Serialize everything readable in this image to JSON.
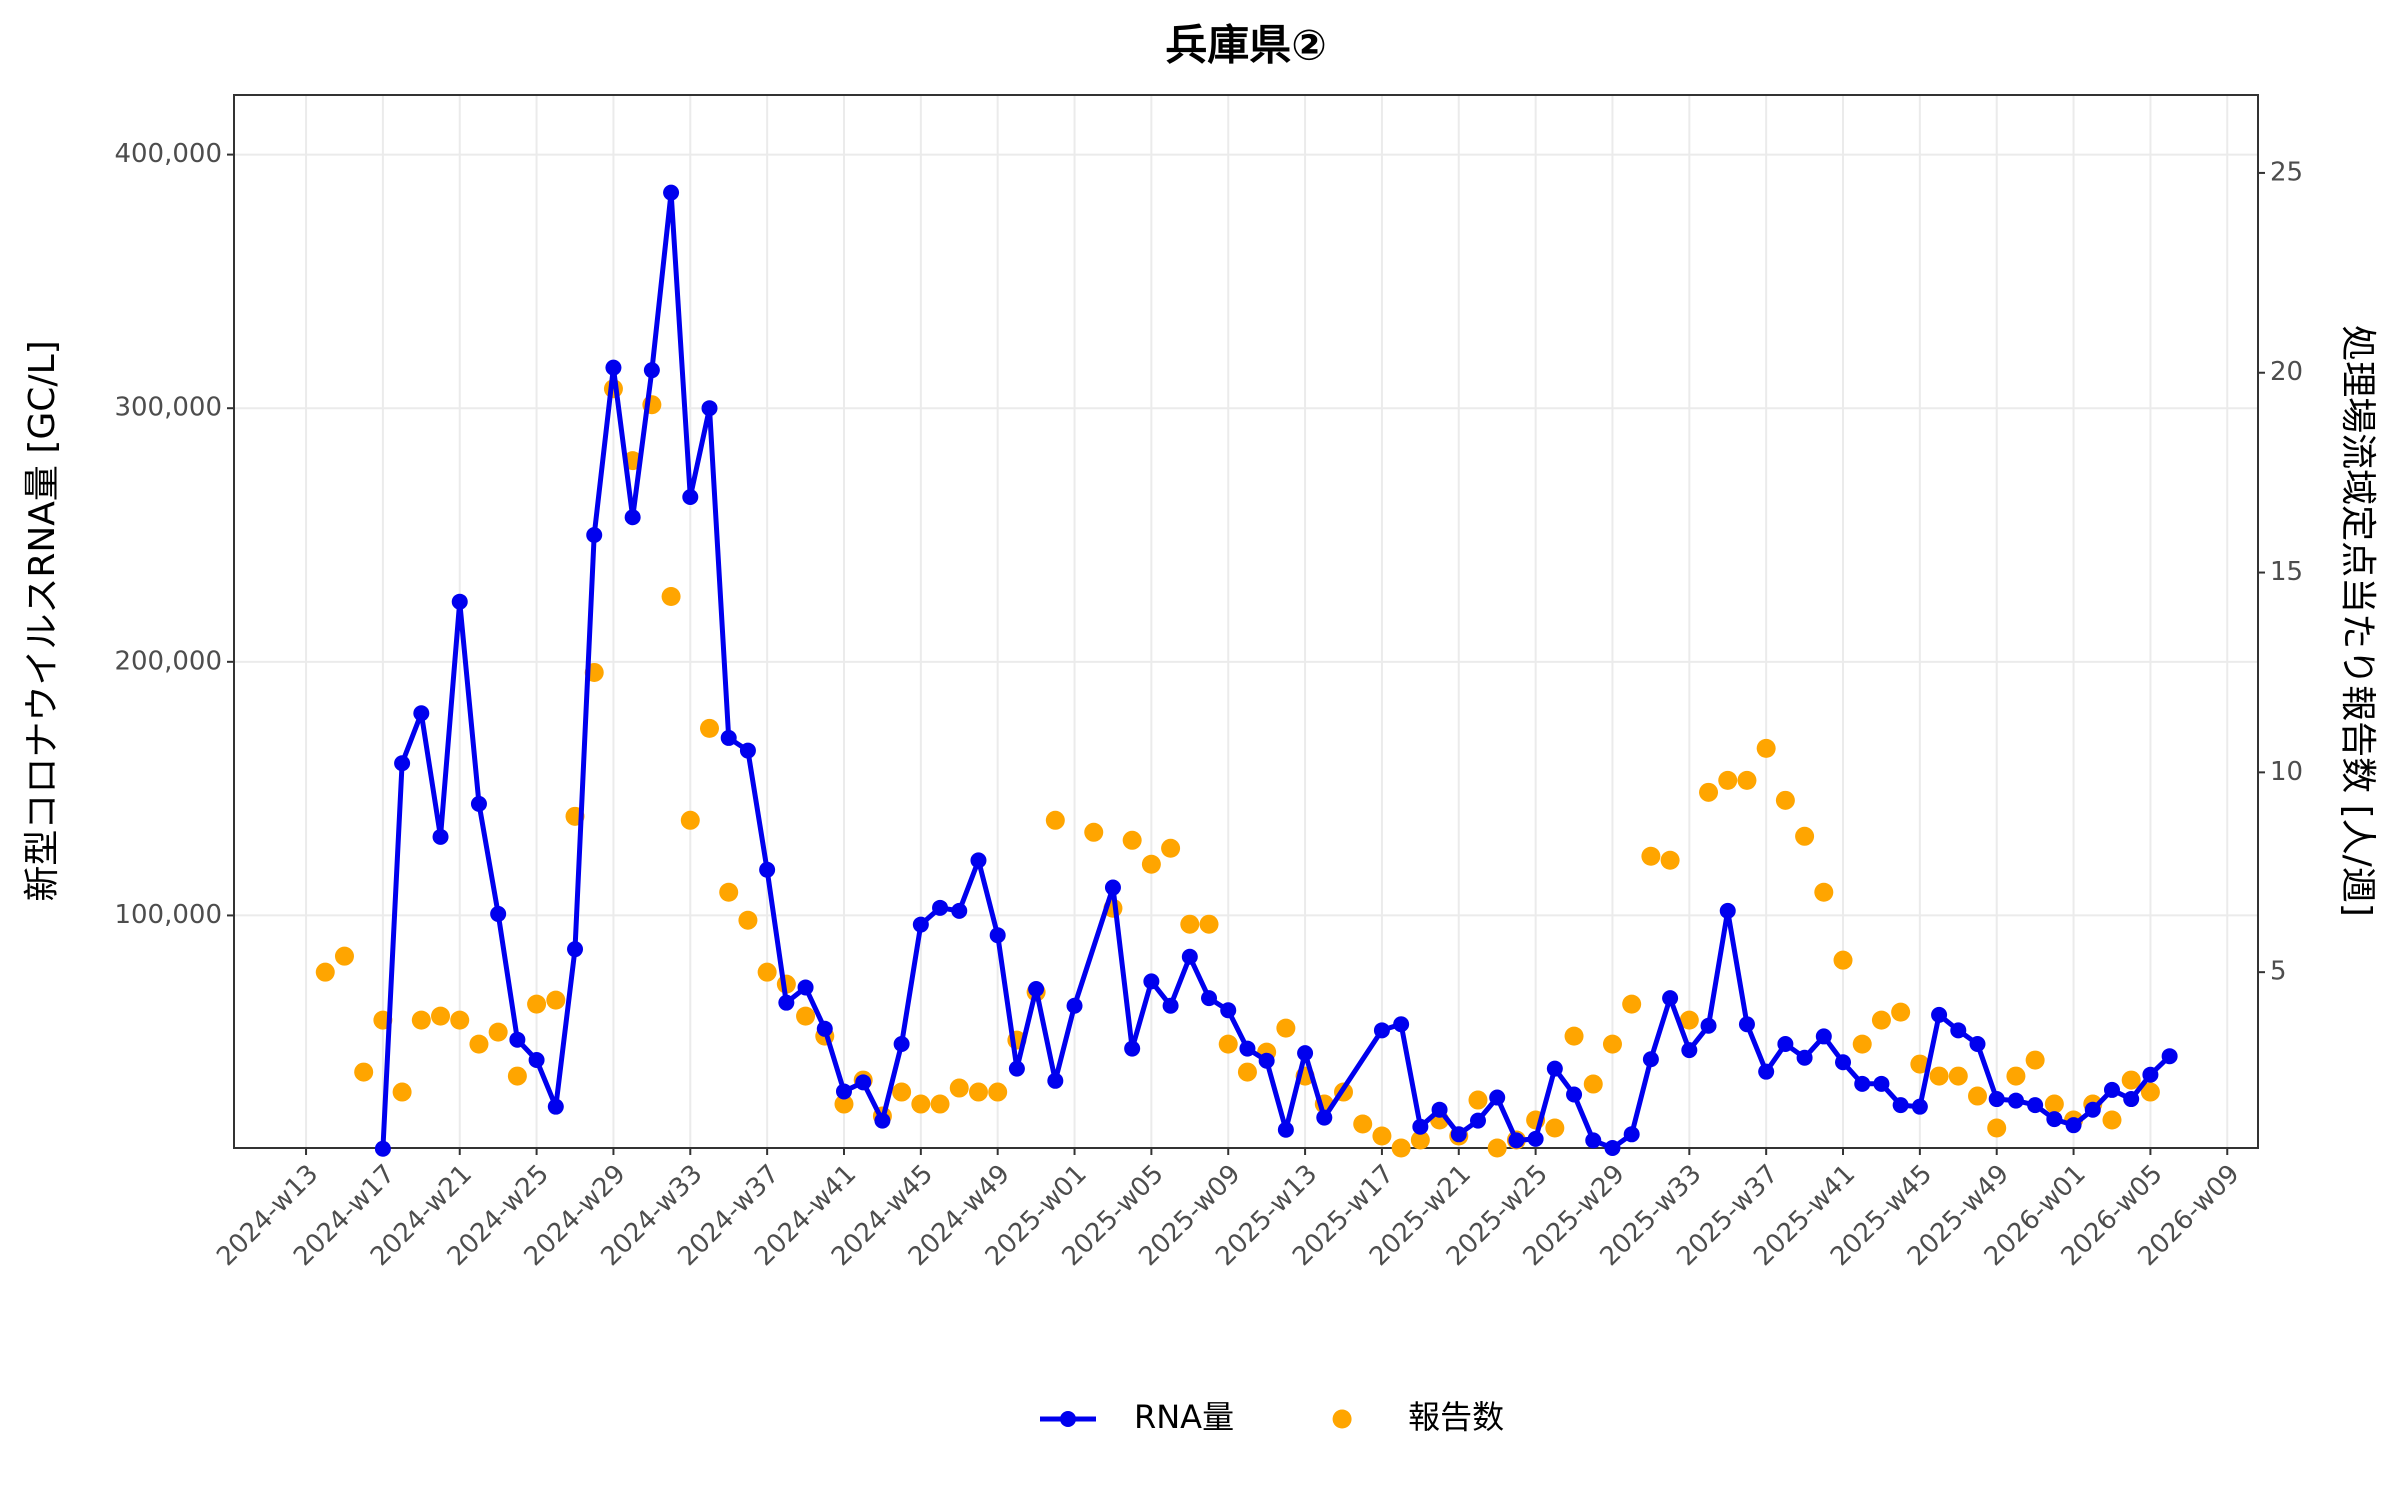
{
  "chart_data": {
    "type": "line-scatter",
    "title": "兵庫県②",
    "y_label": "新型コロナウイルスRNA量 [GC/L]",
    "y2_label": "処理場流域定点当たり報告数 [人/週]",
    "ylim": [
      8300,
      423500
    ],
    "yticks": [
      {
        "value": 100000,
        "label": "100,000"
      },
      {
        "value": 200000,
        "label": "200,000"
      },
      {
        "value": 300000,
        "label": "300,000"
      },
      {
        "value": 400000,
        "label": "400,000"
      }
    ],
    "y2lim": [
      0.6,
      26.95
    ],
    "y2ticks": [
      5,
      10,
      15,
      20,
      25
    ],
    "xticks": [
      "2024-w13",
      "2024-w17",
      "2024-w21",
      "2024-w25",
      "2024-w29",
      "2024-w33",
      "2024-w37",
      "2024-w41",
      "2024-w45",
      "2024-w49",
      "2025-w01",
      "2025-w05",
      "2025-w09",
      "2025-w13",
      "2025-w17",
      "2025-w21",
      "2025-w25",
      "2025-w29",
      "2025-w33",
      "2025-w37",
      "2025-w41",
      "2025-w45",
      "2025-w49",
      "2026-w01",
      "2026-w05",
      "2026-w09"
    ],
    "grid": true,
    "legend": "bottom",
    "series": [
      {
        "name": "RNA量",
        "color": "#0000ee",
        "kind": "line",
        "x": [
          "2024-w17",
          "2024-w18",
          "2024-w19",
          "2024-w20",
          "2024-w21",
          "2024-w22",
          "2024-w23",
          "2024-w24",
          "2024-w25",
          "2024-w26",
          "2024-w27",
          "2024-w28",
          "2024-w29",
          "2024-w30",
          "2024-w31",
          "2024-w32",
          "2024-w33",
          "2024-w34",
          "2024-w35",
          "2024-w36",
          "2024-w37",
          "2024-w38",
          "2024-w39",
          "2024-w40",
          "2024-w41",
          "2024-w42",
          "2024-w43",
          "2024-w44",
          "2024-w45",
          "2024-w46",
          "2024-w47",
          "2024-w48",
          "2024-w49",
          "2024-w50",
          "2024-w51",
          "2024-w52",
          "2025-w01",
          "2025-w03",
          "2025-w04",
          "2025-w05",
          "2025-w06",
          "2025-w07",
          "2025-w08",
          "2025-w09",
          "2025-w10",
          "2025-w11",
          "2025-w12",
          "2025-w13",
          "2025-w14",
          "2025-w17",
          "2025-w18",
          "2025-w19",
          "2025-w20",
          "2025-w21",
          "2025-w22",
          "2025-w23",
          "2025-w24",
          "2025-w25",
          "2025-w26",
          "2025-w27",
          "2025-w28",
          "2025-w29",
          "2025-w30",
          "2025-w31",
          "2025-w32",
          "2025-w33",
          "2025-w34",
          "2025-w35",
          "2025-w36",
          "2025-w37",
          "2025-w38",
          "2025-w39",
          "2025-w40",
          "2025-w41",
          "2025-w42",
          "2025-w43",
          "2025-w44",
          "2025-w45",
          "2025-w46",
          "2025-w47",
          "2025-w48",
          "2025-w49",
          "2025-w50",
          "2025-w51",
          "2025-w52",
          "2026-w01",
          "2026-w02",
          "2026-w03",
          "2026-w04",
          "2026-w05",
          "2026-w06"
        ],
        "values": [
          8000,
          160000,
          179700,
          131000,
          223700,
          144000,
          100600,
          51000,
          43000,
          24600,
          86700,
          250000,
          316000,
          257000,
          315000,
          385000,
          265000,
          300000,
          170000,
          165000,
          118000,
          65600,
          71600,
          55300,
          30600,
          34200,
          19100,
          49300,
          96400,
          103000,
          101800,
          121700,
          92200,
          39600,
          71000,
          34800,
          64400,
          111000,
          47500,
          74000,
          64400,
          83700,
          67400,
          62600,
          47500,
          42700,
          15500,
          45700,
          20300,
          54700,
          57100,
          16700,
          23400,
          13700,
          19100,
          28200,
          11300,
          11900,
          39600,
          29400,
          11300,
          8300,
          13700,
          43300,
          67400,
          46900,
          56500,
          101800,
          57100,
          38400,
          49300,
          43900,
          52300,
          42100,
          33600,
          33600,
          25200,
          24600,
          60800,
          54700,
          49300,
          27600,
          27000,
          25200,
          19700,
          17300,
          23400,
          31200,
          27600,
          37200,
          44500
        ]
      },
      {
        "name": "報告数",
        "color": "#ffa500",
        "kind": "points",
        "axis": "y2",
        "x": [
          "2024-w14",
          "2024-w15",
          "2024-w16",
          "2024-w17",
          "2024-w18",
          "2024-w19",
          "2024-w20",
          "2024-w21",
          "2024-w22",
          "2024-w23",
          "2024-w24",
          "2024-w25",
          "2024-w26",
          "2024-w27",
          "2024-w28",
          "2024-w29",
          "2024-w30",
          "2024-w31",
          "2024-w32",
          "2024-w33",
          "2024-w34",
          "2024-w35",
          "2024-w36",
          "2024-w37",
          "2024-w38",
          "2024-w39",
          "2024-w40",
          "2024-w41",
          "2024-w42",
          "2024-w43",
          "2024-w44",
          "2024-w45",
          "2024-w46",
          "2024-w47",
          "2024-w48",
          "2024-w49",
          "2024-w50",
          "2024-w51",
          "2024-w52",
          "2025-w02",
          "2025-w03",
          "2025-w04",
          "2025-w05",
          "2025-w06",
          "2025-w07",
          "2025-w08",
          "2025-w09",
          "2025-w10",
          "2025-w11",
          "2025-w12",
          "2025-w13",
          "2025-w14",
          "2025-w15",
          "2025-w16",
          "2025-w17",
          "2025-w18",
          "2025-w19",
          "2025-w20",
          "2025-w21",
          "2025-w22",
          "2025-w23",
          "2025-w24",
          "2025-w25",
          "2025-w26",
          "2025-w27",
          "2025-w28",
          "2025-w29",
          "2025-w30",
          "2025-w31",
          "2025-w32",
          "2025-w33",
          "2025-w34",
          "2025-w35",
          "2025-w36",
          "2025-w37",
          "2025-w38",
          "2025-w39",
          "2025-w40",
          "2025-w41",
          "2025-w42",
          "2025-w43",
          "2025-w44",
          "2025-w45",
          "2025-w46",
          "2025-w47",
          "2025-w48",
          "2025-w49",
          "2025-w50",
          "2025-w51",
          "2025-w52",
          "2026-w01",
          "2026-w02",
          "2026-w03",
          "2026-w04",
          "2026-w05"
        ],
        "values": [
          5.0,
          5.4,
          2.5,
          3.8,
          2.0,
          3.8,
          3.9,
          3.8,
          3.2,
          3.5,
          2.4,
          4.2,
          4.3,
          8.9,
          12.5,
          19.6,
          17.8,
          19.2,
          14.4,
          8.8,
          11.1,
          7.0,
          6.3,
          5.0,
          4.7,
          3.9,
          3.4,
          1.7,
          2.3,
          1.4,
          2.0,
          1.7,
          1.7,
          2.1,
          2.0,
          2.0,
          3.3,
          4.5,
          8.8,
          8.5,
          6.6,
          8.3,
          7.7,
          8.1,
          6.2,
          6.2,
          3.2,
          2.5,
          3.0,
          3.6,
          2.4,
          1.7,
          2.0,
          1.2,
          0.9,
          0.6,
          0.8,
          1.3,
          0.9,
          1.8,
          0.6,
          0.8,
          1.3,
          1.1,
          3.4,
          2.2,
          3.2,
          4.2,
          7.9,
          7.8,
          3.8,
          9.5,
          9.8,
          9.8,
          10.6,
          9.3,
          8.4,
          7.0,
          5.3,
          3.2,
          3.8,
          4.0,
          2.7,
          2.4,
          2.4,
          1.9,
          1.1,
          2.4,
          2.8,
          1.7,
          1.3,
          1.7,
          1.3,
          2.3,
          2.0
        ]
      }
    ]
  }
}
